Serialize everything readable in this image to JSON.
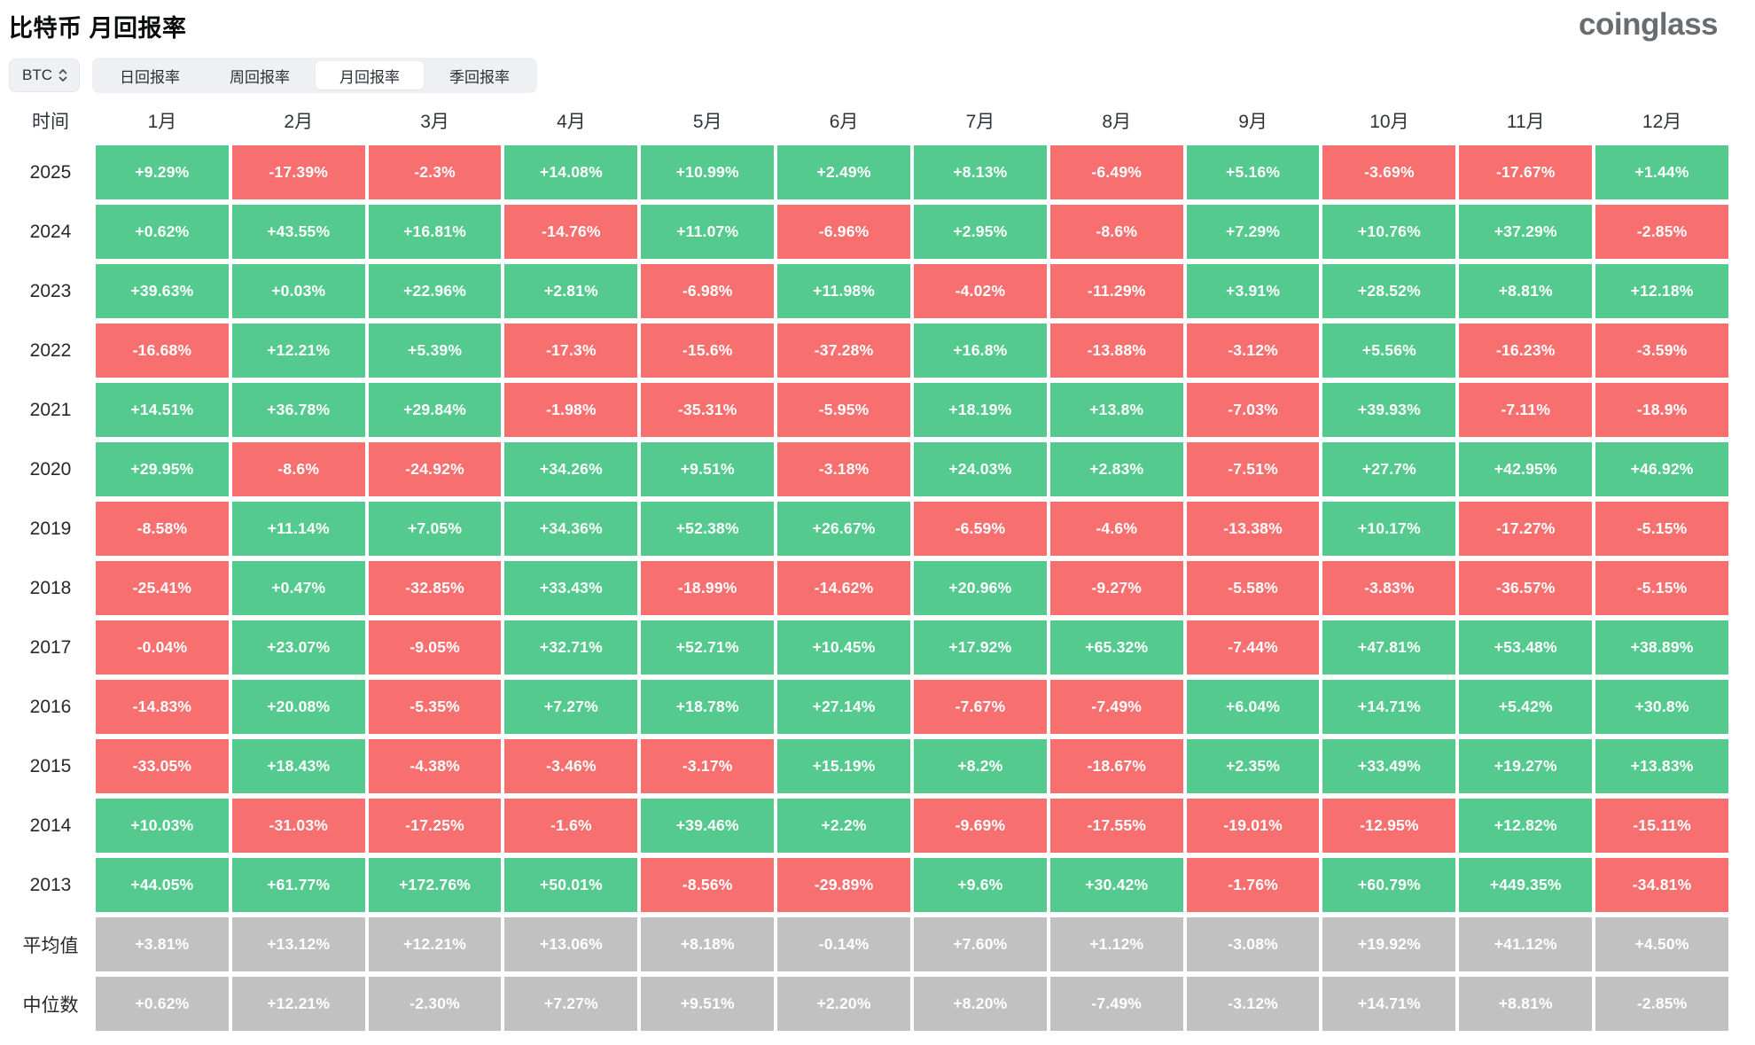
{
  "page": {
    "title": "比特币 月回报率",
    "logo": "coinglass"
  },
  "controls": {
    "symbol_select": {
      "value": "BTC"
    },
    "tabs": [
      {
        "key": "daily",
        "label": "日回报率",
        "active": false
      },
      {
        "key": "weekly",
        "label": "周回报率",
        "active": false
      },
      {
        "key": "monthly",
        "label": "月回报率",
        "active": true
      },
      {
        "key": "quarterly",
        "label": "季回报率",
        "active": false
      }
    ]
  },
  "chart_data": {
    "type": "heatmap",
    "title": "比特币 月回报率",
    "row_header": "时间",
    "columns": [
      "1月",
      "2月",
      "3月",
      "4月",
      "5月",
      "6月",
      "7月",
      "8月",
      "9月",
      "10月",
      "11月",
      "12月"
    ],
    "rows": [
      {
        "label": "2025",
        "type": "year",
        "values": [
          "+9.29%",
          "-17.39%",
          "-2.3%",
          "+14.08%",
          "+10.99%",
          "+2.49%",
          "+8.13%",
          "-6.49%",
          "+5.16%",
          "-3.69%",
          "-17.67%",
          "+1.44%"
        ]
      },
      {
        "label": "2024",
        "type": "year",
        "values": [
          "+0.62%",
          "+43.55%",
          "+16.81%",
          "-14.76%",
          "+11.07%",
          "-6.96%",
          "+2.95%",
          "-8.6%",
          "+7.29%",
          "+10.76%",
          "+37.29%",
          "-2.85%"
        ]
      },
      {
        "label": "2023",
        "type": "year",
        "values": [
          "+39.63%",
          "+0.03%",
          "+22.96%",
          "+2.81%",
          "-6.98%",
          "+11.98%",
          "-4.02%",
          "-11.29%",
          "+3.91%",
          "+28.52%",
          "+8.81%",
          "+12.18%"
        ]
      },
      {
        "label": "2022",
        "type": "year",
        "values": [
          "-16.68%",
          "+12.21%",
          "+5.39%",
          "-17.3%",
          "-15.6%",
          "-37.28%",
          "+16.8%",
          "-13.88%",
          "-3.12%",
          "+5.56%",
          "-16.23%",
          "-3.59%"
        ]
      },
      {
        "label": "2021",
        "type": "year",
        "values": [
          "+14.51%",
          "+36.78%",
          "+29.84%",
          "-1.98%",
          "-35.31%",
          "-5.95%",
          "+18.19%",
          "+13.8%",
          "-7.03%",
          "+39.93%",
          "-7.11%",
          "-18.9%"
        ]
      },
      {
        "label": "2020",
        "type": "year",
        "values": [
          "+29.95%",
          "-8.6%",
          "-24.92%",
          "+34.26%",
          "+9.51%",
          "-3.18%",
          "+24.03%",
          "+2.83%",
          "-7.51%",
          "+27.7%",
          "+42.95%",
          "+46.92%"
        ]
      },
      {
        "label": "2019",
        "type": "year",
        "values": [
          "-8.58%",
          "+11.14%",
          "+7.05%",
          "+34.36%",
          "+52.38%",
          "+26.67%",
          "-6.59%",
          "-4.6%",
          "-13.38%",
          "+10.17%",
          "-17.27%",
          "-5.15%"
        ]
      },
      {
        "label": "2018",
        "type": "year",
        "values": [
          "-25.41%",
          "+0.47%",
          "-32.85%",
          "+33.43%",
          "-18.99%",
          "-14.62%",
          "+20.96%",
          "-9.27%",
          "-5.58%",
          "-3.83%",
          "-36.57%",
          "-5.15%"
        ]
      },
      {
        "label": "2017",
        "type": "year",
        "values": [
          "-0.04%",
          "+23.07%",
          "-9.05%",
          "+32.71%",
          "+52.71%",
          "+10.45%",
          "+17.92%",
          "+65.32%",
          "-7.44%",
          "+47.81%",
          "+53.48%",
          "+38.89%"
        ]
      },
      {
        "label": "2016",
        "type": "year",
        "values": [
          "-14.83%",
          "+20.08%",
          "-5.35%",
          "+7.27%",
          "+18.78%",
          "+27.14%",
          "-7.67%",
          "-7.49%",
          "+6.04%",
          "+14.71%",
          "+5.42%",
          "+30.8%"
        ]
      },
      {
        "label": "2015",
        "type": "year",
        "values": [
          "-33.05%",
          "+18.43%",
          "-4.38%",
          "-3.46%",
          "-3.17%",
          "+15.19%",
          "+8.2%",
          "-18.67%",
          "+2.35%",
          "+33.49%",
          "+19.27%",
          "+13.83%"
        ]
      },
      {
        "label": "2014",
        "type": "year",
        "values": [
          "+10.03%",
          "-31.03%",
          "-17.25%",
          "-1.6%",
          "+39.46%",
          "+2.2%",
          "-9.69%",
          "-17.55%",
          "-19.01%",
          "-12.95%",
          "+12.82%",
          "-15.11%"
        ]
      },
      {
        "label": "2013",
        "type": "year",
        "values": [
          "+44.05%",
          "+61.77%",
          "+172.76%",
          "+50.01%",
          "-8.56%",
          "-29.89%",
          "+9.6%",
          "+30.42%",
          "-1.76%",
          "+60.79%",
          "+449.35%",
          "-34.81%"
        ]
      },
      {
        "label": "平均值",
        "type": "summary",
        "values": [
          "+3.81%",
          "+13.12%",
          "+12.21%",
          "+13.06%",
          "+8.18%",
          "-0.14%",
          "+7.60%",
          "+1.12%",
          "-3.08%",
          "+19.92%",
          "+41.12%",
          "+4.50%"
        ]
      },
      {
        "label": "中位数",
        "type": "summary",
        "values": [
          "+0.62%",
          "+12.21%",
          "-2.30%",
          "+7.27%",
          "+9.51%",
          "+2.20%",
          "+8.20%",
          "-7.49%",
          "-3.12%",
          "+14.71%",
          "+8.81%",
          "-2.85%"
        ]
      }
    ],
    "colors": {
      "positive": "#55ca8e",
      "negative": "#f76f6f",
      "summary": "#c1c1c1"
    },
    "legend_position": "none",
    "grid": false
  }
}
